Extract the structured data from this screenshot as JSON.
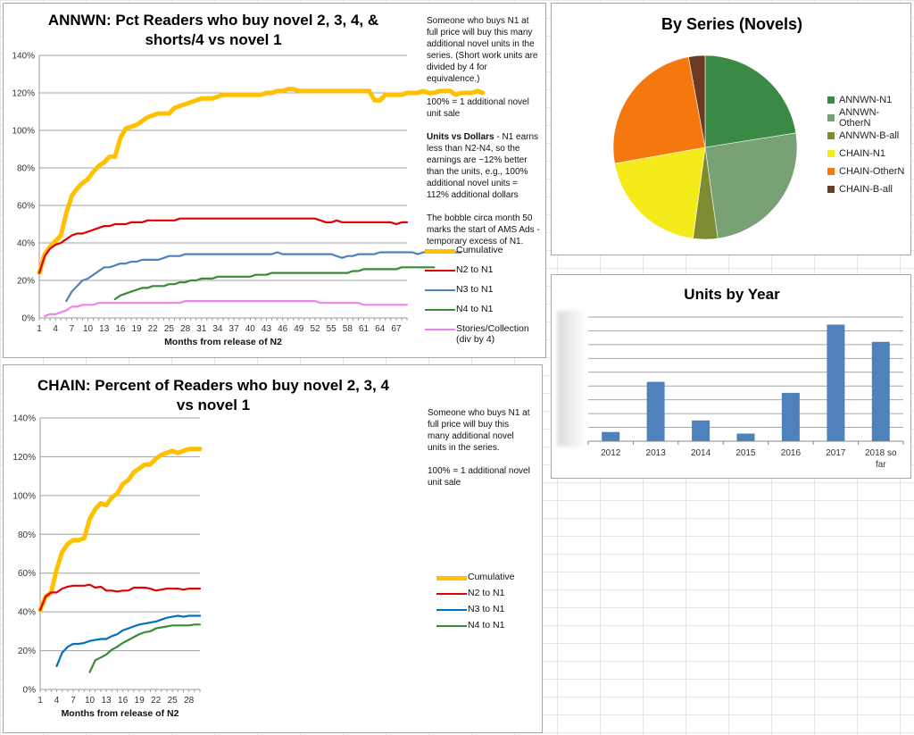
{
  "chart_data": [
    {
      "id": "annwn",
      "type": "line",
      "title": "ANNWN: Pct Readers who buy novel 2, 3, 4, & shorts/4 vs novel 1",
      "title_lines": [
        "ANNWN: Pct Readers who buy novel 2, 3, 4, &",
        "shorts/4 vs novel 1"
      ],
      "xlabel": "Months from release of N2",
      "ylabel": "",
      "ylim": [
        0,
        140
      ],
      "y_ticks": [
        "0%",
        "20%",
        "40%",
        "60%",
        "80%",
        "100%",
        "120%",
        "140%"
      ],
      "x_ticks": [
        "1",
        "4",
        "7",
        "10",
        "13",
        "16",
        "19",
        "22",
        "25",
        "28",
        "31",
        "34",
        "37",
        "40",
        "43",
        "46",
        "49",
        "52",
        "55",
        "58",
        "61",
        "64",
        "67"
      ],
      "x_range": [
        1,
        69
      ],
      "grid": true,
      "legend_position": "right",
      "series": [
        {
          "name": "Cumulative",
          "color": "#FFC000",
          "start": 1,
          "values": [
            24,
            34,
            38,
            41,
            44,
            56,
            65,
            69,
            72,
            74,
            78,
            81,
            83,
            86,
            86,
            96,
            101,
            102,
            103,
            105,
            107,
            108,
            109,
            109,
            109,
            112,
            113,
            114,
            115,
            116,
            117,
            117,
            117,
            118,
            119,
            119,
            119,
            119,
            119,
            119,
            119,
            119,
            120,
            120,
            121,
            121,
            122,
            122,
            121,
            121,
            121,
            121,
            121,
            121,
            121,
            121,
            121,
            121,
            121,
            121,
            121,
            121,
            116,
            116,
            119,
            119,
            119,
            119,
            120,
            120,
            120,
            121,
            120,
            120,
            121,
            121,
            121,
            119,
            120,
            120,
            120,
            121,
            120
          ]
        },
        {
          "name": "N2 to N1",
          "color": "#E00000",
          "start": 1,
          "values": [
            24,
            33,
            37,
            39,
            40,
            42,
            44,
            45,
            45,
            46,
            47,
            48,
            49,
            49,
            50,
            50,
            50,
            51,
            51,
            51,
            52,
            52,
            52,
            52,
            52,
            52,
            53,
            53,
            53,
            53,
            53,
            53,
            53,
            53,
            53,
            53,
            53,
            53,
            53,
            53,
            53,
            53,
            53,
            53,
            53,
            53,
            53,
            53,
            53,
            53,
            53,
            53,
            52,
            51,
            51,
            52,
            51,
            51,
            51,
            51,
            51,
            51,
            51,
            51,
            51,
            51,
            50,
            51,
            51
          ]
        },
        {
          "name": "N3 to N1",
          "color": "#4F81BD",
          "start": 6,
          "values": [
            9,
            14,
            17,
            20,
            21,
            23,
            25,
            27,
            27,
            28,
            29,
            29,
            30,
            30,
            31,
            31,
            31,
            31,
            32,
            33,
            33,
            33,
            34,
            34,
            34,
            34,
            34,
            34,
            34,
            34,
            34,
            34,
            34,
            34,
            34,
            34,
            34,
            34,
            34,
            35,
            34,
            34,
            34,
            34,
            34,
            34,
            34,
            34,
            34,
            34,
            33,
            32,
            33,
            33,
            34,
            34,
            34,
            34,
            35,
            35,
            35,
            35,
            35,
            35,
            35,
            34,
            35,
            35,
            35,
            35,
            35,
            35,
            35,
            35
          ]
        },
        {
          "name": "N4 to N1",
          "color": "#3A8A3A",
          "start": 15,
          "values": [
            10,
            12,
            13,
            14,
            15,
            16,
            16,
            17,
            17,
            17,
            18,
            18,
            19,
            19,
            20,
            20,
            21,
            21,
            21,
            22,
            22,
            22,
            22,
            22,
            22,
            22,
            23,
            23,
            23,
            24,
            24,
            24,
            24,
            24,
            24,
            24,
            24,
            24,
            24,
            24,
            24,
            24,
            24,
            24,
            25,
            25,
            26,
            26,
            26,
            26,
            26,
            26,
            26,
            27,
            27,
            27,
            27,
            27,
            27,
            27
          ]
        },
        {
          "name": "Stories/Collection (div by 4)",
          "color": "#EE82EE",
          "start": 2,
          "values": [
            1,
            2,
            2,
            3,
            4,
            6,
            6,
            7,
            7,
            7,
            8,
            8,
            8,
            8,
            8,
            8,
            8,
            8,
            8,
            8,
            8,
            8,
            8,
            8,
            8,
            8,
            9,
            9,
            9,
            9,
            9,
            9,
            9,
            9,
            9,
            9,
            9,
            9,
            9,
            9,
            9,
            9,
            9,
            9,
            9,
            9,
            9,
            9,
            9,
            9,
            9,
            8,
            8,
            8,
            8,
            8,
            8,
            8,
            8,
            7,
            7,
            7,
            7,
            7,
            7,
            7,
            7,
            7
          ]
        }
      ],
      "legend": [
        {
          "label": "Cumulative",
          "color": "#FFC000",
          "thick": true
        },
        {
          "label": "N2 to N1",
          "color": "#E00000"
        },
        {
          "label": "N3 to N1",
          "color": "#4F81BD"
        },
        {
          "label": "N4 to N1",
          "color": "#3A8A3A"
        },
        {
          "label": "Stories/Collection (div by 4)",
          "color": "#EE82EE"
        }
      ],
      "notes": [
        {
          "text": "Someone who buys N1 at full price will buy this many additional novel units in the series. (Short work units are divided by 4 for equivalence.)"
        },
        {
          "text": "100% = 1 additional novel unit sale"
        },
        {
          "bold": "Units vs Dollars",
          "text": " - N1 earns less than N2-N4, so the earnings are ~12% better than the units, e.g., 100% additional novel units = 112% additional dollars"
        },
        {
          "text": "The bobble circa month 50 marks the start of AMS Ads - temporary excess of N1."
        }
      ]
    },
    {
      "id": "chain",
      "type": "line",
      "title": "CHAIN: Percent of Readers who buy novel 2, 3, 4 vs novel 1",
      "title_lines": [
        "CHAIN: Percent of Readers who buy novel 2, 3, 4",
        "vs novel 1"
      ],
      "xlabel": "Months from release of N2",
      "ylim": [
        0,
        140
      ],
      "y_ticks": [
        "0%",
        "20%",
        "40%",
        "60%",
        "80%",
        "100%",
        "120%",
        "140%"
      ],
      "x_ticks": [
        "1",
        "4",
        "7",
        "10",
        "13",
        "16",
        "19",
        "22",
        "25",
        "28"
      ],
      "x_range": [
        1,
        30
      ],
      "grid": true,
      "legend_position": "right",
      "series": [
        {
          "name": "Cumulative",
          "color": "#FFC000",
          "start": 1,
          "values": [
            41,
            48,
            50,
            62,
            71,
            75,
            77,
            77,
            78,
            88,
            93,
            96,
            95,
            99,
            101,
            106,
            108,
            112,
            114,
            116,
            116,
            119,
            121,
            122,
            123,
            122,
            123,
            124,
            124,
            124
          ]
        },
        {
          "name": "N2 to N1",
          "color": "#E00000",
          "start": 1,
          "values": [
            41,
            48,
            50,
            50,
            52,
            53,
            53.5,
            53.5,
            53.5,
            54,
            52.5,
            53,
            51,
            51,
            50.5,
            51,
            51,
            52.5,
            52.5,
            52.5,
            52,
            51,
            51.5,
            52,
            52,
            52,
            51.5,
            52,
            52,
            52
          ]
        },
        {
          "name": "N3 to N1",
          "color": "#0070C0",
          "start": 4,
          "values": [
            12,
            19,
            22,
            23.5,
            23.5,
            24,
            25,
            25.5,
            26,
            26,
            27.5,
            28.5,
            30.5,
            31.5,
            32.5,
            33.5,
            34,
            34.5,
            35,
            36,
            37,
            37.5,
            38,
            37.5,
            38,
            38,
            38
          ]
        },
        {
          "name": "N4 to N1",
          "color": "#3A8A3A",
          "start": 10,
          "values": [
            9,
            15,
            16.5,
            18,
            20.5,
            22,
            24,
            25.5,
            27,
            28.5,
            29.5,
            30,
            31.5,
            32,
            32.5,
            33,
            33,
            33,
            33,
            33.5,
            33.5
          ]
        }
      ],
      "legend": [
        {
          "label": "Cumulative",
          "color": "#FFC000",
          "thick": true
        },
        {
          "label": "N2 to N1",
          "color": "#E00000"
        },
        {
          "label": "N3 to N1",
          "color": "#0070C0"
        },
        {
          "label": "N4 to N1",
          "color": "#3A8A3A"
        }
      ],
      "notes": [
        {
          "text": "Someone who buys N1 at full price will buy this many additional novel units in the series."
        },
        {
          "text": "100% = 1 additional novel unit sale"
        }
      ]
    },
    {
      "id": "pie",
      "type": "pie",
      "title": "By Series (Novels)",
      "legend_position": "right",
      "labels": [
        "ANNWN-N1",
        "ANNWN-OtherN",
        "ANNWN-B-all",
        "CHAIN-N1",
        "CHAIN-OtherN",
        "CHAIN-B-all"
      ],
      "values": [
        22.5,
        25.3,
        4.3,
        20.1,
        24.9,
        2.9
      ],
      "colors": [
        "#3A8A45",
        "#78A275",
        "#7D8B33",
        "#F5EB1A",
        "#F5780F",
        "#6B3A22"
      ]
    },
    {
      "id": "bars",
      "type": "bar",
      "title": "Units by Year",
      "categories": [
        "2012",
        "2013",
        "2014",
        "2015",
        "2016",
        "2017",
        "2018 so far"
      ],
      "category_lines": [
        [
          "2012"
        ],
        [
          "2013"
        ],
        [
          "2014"
        ],
        [
          "2015"
        ],
        [
          "2016"
        ],
        [
          "2017"
        ],
        [
          "2018 so",
          "far"
        ]
      ],
      "values": [
        0.67,
        4.3,
        1.5,
        0.55,
        3.5,
        8.45,
        7.2
      ],
      "value_units": "gridline units (y-axis labels blurred/hidden)",
      "ylim": [
        0,
        9
      ],
      "grid": true,
      "y_ticks_hidden": true,
      "color": "#4F81BD"
    }
  ]
}
